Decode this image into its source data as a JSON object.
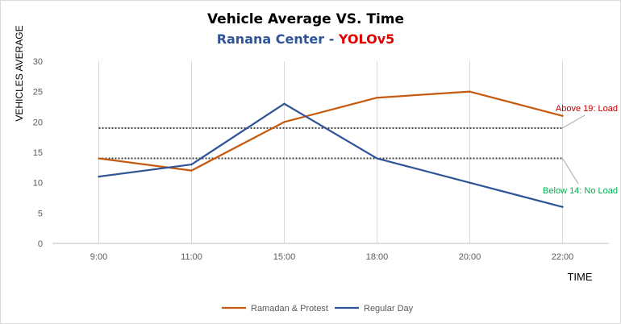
{
  "chart_data": {
    "type": "line",
    "title": "Vehicle Average VS. Time",
    "subtitle": {
      "part1": "Ranana Center",
      "separator": " - ",
      "part2": "YOLOv5"
    },
    "xlabel": "TIME",
    "ylabel": "VEHICLES AVERAGE",
    "categories": [
      "9:00",
      "11:00",
      "15:00",
      "18:00",
      "20:00",
      "22:00"
    ],
    "ylim": [
      0,
      30
    ],
    "yticks": [
      0,
      5,
      10,
      15,
      20,
      25,
      30
    ],
    "grid": "vertical",
    "legend_position": "bottom",
    "series": [
      {
        "name": "Ramadan & Protest",
        "values": [
          14,
          12,
          20,
          24,
          25,
          21
        ],
        "color": "#c55a11"
      },
      {
        "name": "Regular Day",
        "values": [
          11,
          13,
          23,
          14,
          10,
          6
        ],
        "color": "#2f5597"
      }
    ],
    "thresholds": [
      {
        "value": 19,
        "label": "Above 19: Load",
        "color": "#c00000"
      },
      {
        "value": 14,
        "label": "Below 14: No Load",
        "color": "#00b050"
      }
    ],
    "colors": {
      "subtitle_part1": "#2f5597",
      "subtitle_part2": "#e00000",
      "grid": "#d9d9d9",
      "threshold_line": "#404040"
    }
  }
}
